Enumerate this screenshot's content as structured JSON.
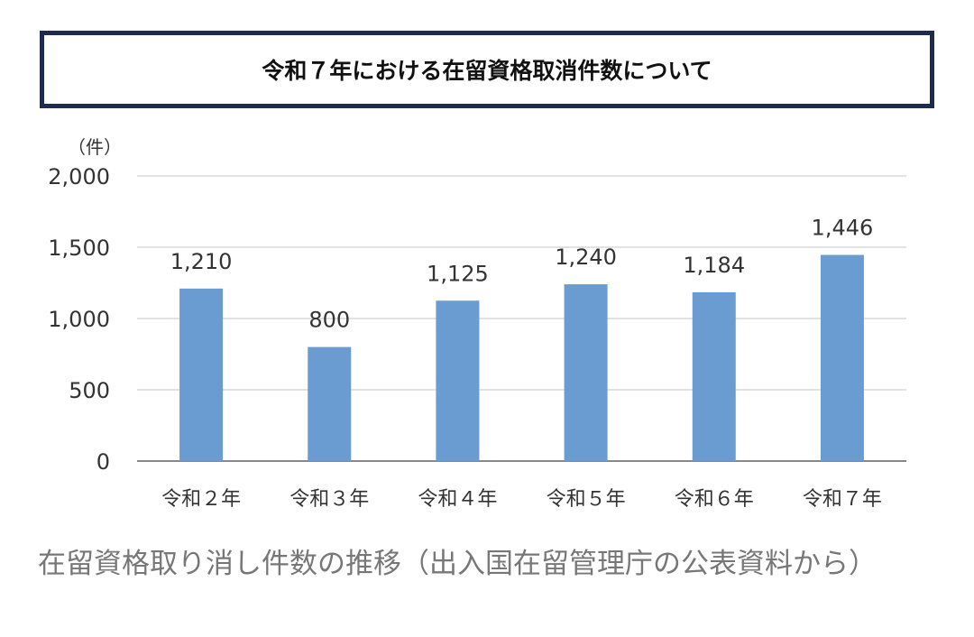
{
  "chart_data": {
    "type": "bar",
    "title": "令和７年における在留資格取消件数について",
    "ylabel": "（件）",
    "xlabel": "",
    "categories": [
      "令和２年",
      "令和３年",
      "令和４年",
      "令和５年",
      "令和６年",
      "令和７年"
    ],
    "values": [
      1210,
      800,
      1125,
      1240,
      1184,
      1446
    ],
    "data_labels": [
      "1,210",
      "800",
      "1,125",
      "1,240",
      "1,184",
      "1,446"
    ],
    "ylim": [
      0,
      2000
    ],
    "yticks": [
      0,
      500,
      1000,
      1500,
      2000
    ],
    "ytick_labels": [
      "0",
      "500",
      "1,000",
      "1,500",
      "2,000"
    ],
    "grid": true,
    "bar_color": "#6a9bd1"
  },
  "caption": "在留資格取り消し件数の推移（出入国在留管理庁の公表資料から）"
}
